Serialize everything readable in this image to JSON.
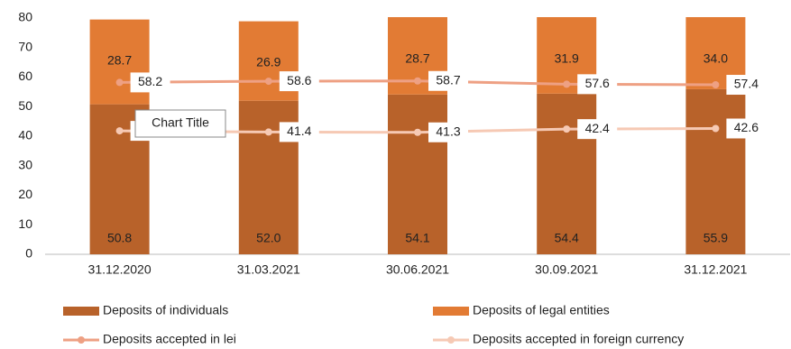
{
  "chart_data": {
    "type": "bar-line",
    "tooltip": "Chart Title",
    "categories": [
      "31.12.2020",
      "31.03.2021",
      "30.06.2021",
      "30.09.2021",
      "31.12.2021"
    ],
    "series": [
      {
        "name": "Deposits of individuals",
        "type": "bar",
        "color": "#b8622a",
        "values": [
          50.8,
          52.0,
          54.1,
          54.4,
          55.9
        ],
        "value_labels": [
          "50.8",
          "52.0",
          "54.1",
          "54.4",
          "55.9"
        ]
      },
      {
        "name": "Deposits of legal entities",
        "type": "bar",
        "color": "#e27b34",
        "values": [
          28.7,
          26.9,
          28.7,
          31.9,
          34.0
        ],
        "value_labels": [
          "28.7",
          "26.9",
          "28.7",
          "31.9",
          "34.0"
        ]
      },
      {
        "name": "Deposits accepted in lei",
        "type": "line",
        "color": "#eea083",
        "values": [
          58.2,
          58.6,
          58.7,
          57.6,
          57.4
        ],
        "value_labels": [
          "58.2",
          "58.6",
          "58.7",
          "57.6",
          "57.4"
        ]
      },
      {
        "name": "Deposits accepted in foreign currency",
        "type": "line",
        "color": "#f6c9b4",
        "values": [
          41.8,
          41.4,
          41.3,
          42.4,
          42.6
        ],
        "value_labels": [
          "41.8",
          "41.4",
          "41.3",
          "42.4",
          "42.6"
        ]
      }
    ],
    "ylim": [
      0,
      80
    ],
    "yticks": [
      0,
      10,
      20,
      30,
      40,
      50,
      60,
      70,
      80
    ],
    "grid": false,
    "legend": "bottom"
  }
}
